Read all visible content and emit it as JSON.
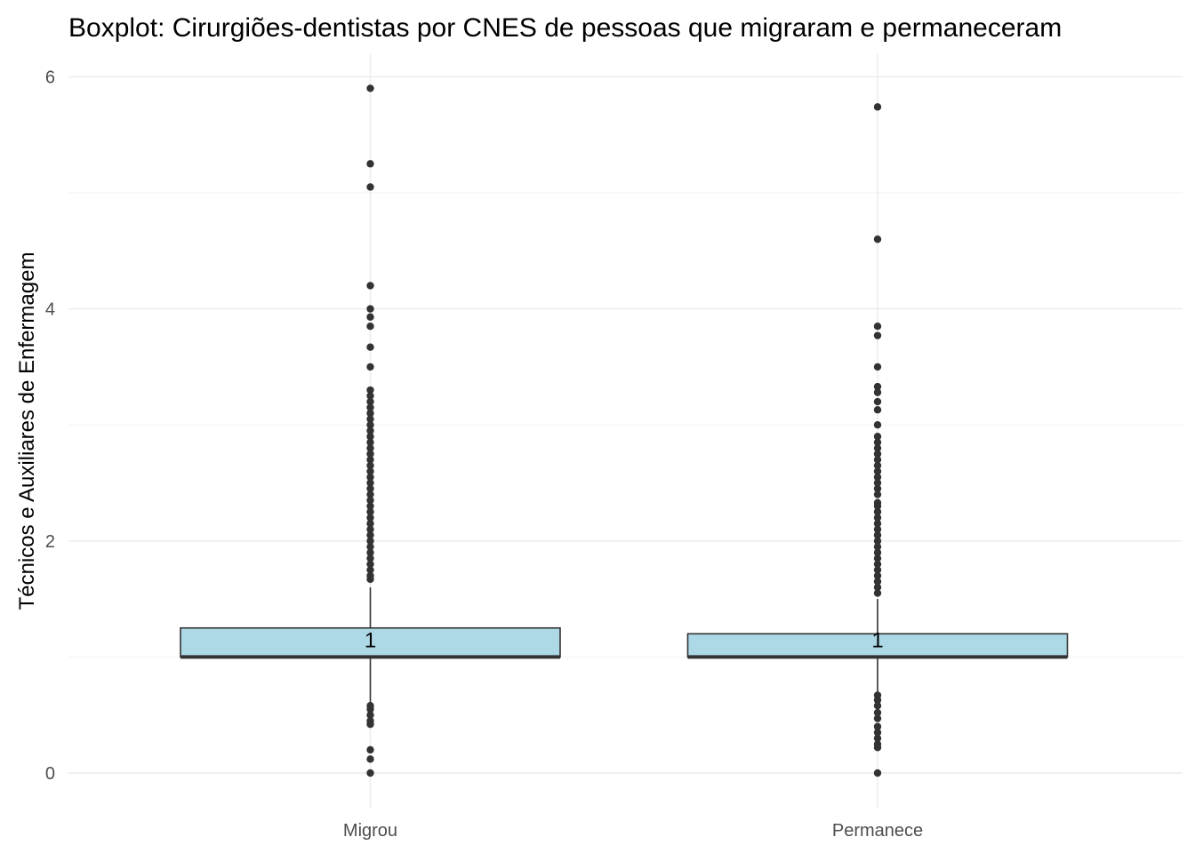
{
  "chart_data": {
    "type": "boxplot",
    "title": "Boxplot: Cirurgiões-dentistas por CNES de pessoas que migraram e permaneceram",
    "xlabel": "",
    "ylabel": "Técnicos e Auxiliares de Enfermagem",
    "ylim": [
      -0.3,
      6.2
    ],
    "yticks": [
      0,
      2,
      4,
      6
    ],
    "grid": true,
    "categories": [
      "Migrou",
      "Permanece"
    ],
    "box_fill": "#add8e6",
    "outlier_color": "#333333",
    "groups": [
      {
        "category": "Migrou",
        "median": 1,
        "q1": 1,
        "q3": 1.25,
        "whisker_low": 0.6,
        "whisker_high": 1.6,
        "median_label": "1",
        "outliers": [
          5.9,
          5.25,
          5.05,
          4.2,
          4.0,
          3.93,
          3.85,
          3.67,
          3.5,
          3.3,
          3.25,
          3.2,
          3.15,
          3.1,
          3.05,
          3.0,
          2.95,
          2.9,
          2.85,
          2.8,
          2.75,
          2.7,
          2.65,
          2.6,
          2.55,
          2.5,
          2.45,
          2.4,
          2.35,
          2.3,
          2.25,
          2.2,
          2.15,
          2.1,
          2.05,
          2.0,
          1.95,
          1.9,
          1.85,
          1.8,
          1.75,
          1.7,
          1.67,
          0.58,
          0.55,
          0.5,
          0.45,
          0.42,
          0.2,
          0.12,
          0.0
        ]
      },
      {
        "category": "Permanece",
        "median": 1,
        "q1": 1,
        "q3": 1.2,
        "whisker_low": 0.7,
        "whisker_high": 1.5,
        "median_label": "1",
        "outliers": [
          5.74,
          4.6,
          3.85,
          3.77,
          3.5,
          3.33,
          3.28,
          3.2,
          3.13,
          3.0,
          2.9,
          2.85,
          2.8,
          2.75,
          2.7,
          2.65,
          2.6,
          2.55,
          2.5,
          2.45,
          2.4,
          2.33,
          2.3,
          2.25,
          2.2,
          2.15,
          2.1,
          2.05,
          2.0,
          1.95,
          1.9,
          1.85,
          1.8,
          1.75,
          1.7,
          1.65,
          1.6,
          1.55,
          0.67,
          0.63,
          0.58,
          0.52,
          0.47,
          0.4,
          0.35,
          0.3,
          0.25,
          0.22,
          0.0
        ]
      }
    ]
  }
}
